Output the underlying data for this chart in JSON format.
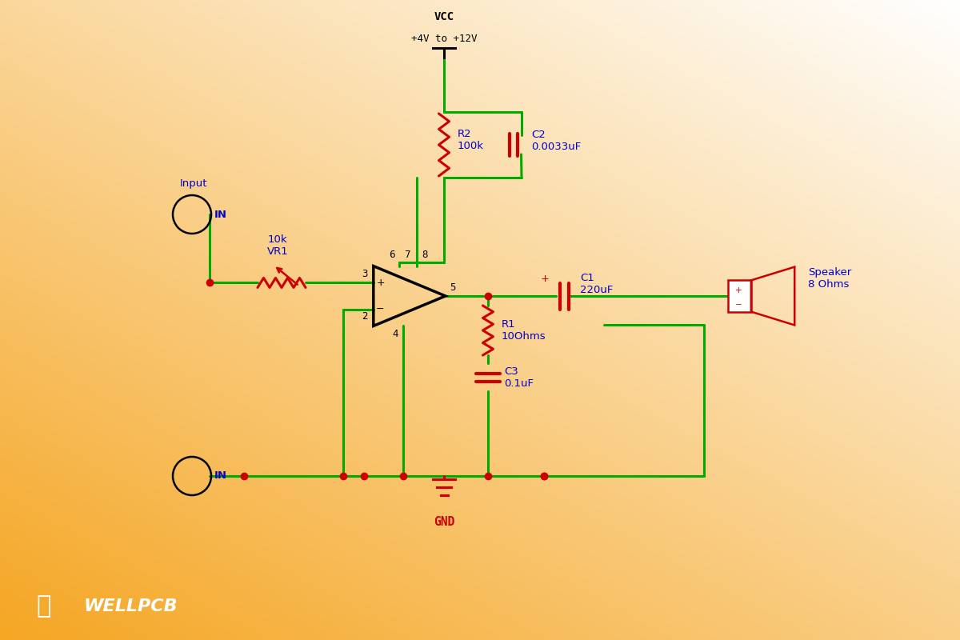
{
  "bg_top_color": "#ffffff",
  "bg_bottom_color": "#f5a623",
  "wire_color": "#00aa00",
  "component_color": "#cc0000",
  "label_color": "#0000cc",
  "pin_color": "#000000",
  "vcc_label1": "VCC",
  "vcc_label2": "+4V to +12V",
  "gnd_label": "GND",
  "input_label_top": "Input",
  "input_label_in": "IN",
  "input2_label": "IN",
  "vr1_label": "10k\nVR1",
  "r2_label": "R2\n100k",
  "c2_label": "C2\n0.0033uF",
  "c1_label": "C1\n220uF",
  "r1_label": "R1\n10Ohms",
  "c3_label": "C3\n0.1uF",
  "speaker_label": "Speaker\n8 Ohms",
  "wellpcb_text": "WELLPCB",
  "pin6_label": "6",
  "pin8_label": "8",
  "pin3_label": "3",
  "pin2_label": "2",
  "pin4_label": "4",
  "pin5_label": "5",
  "pin7_label": "7",
  "c1_plus": "+"
}
